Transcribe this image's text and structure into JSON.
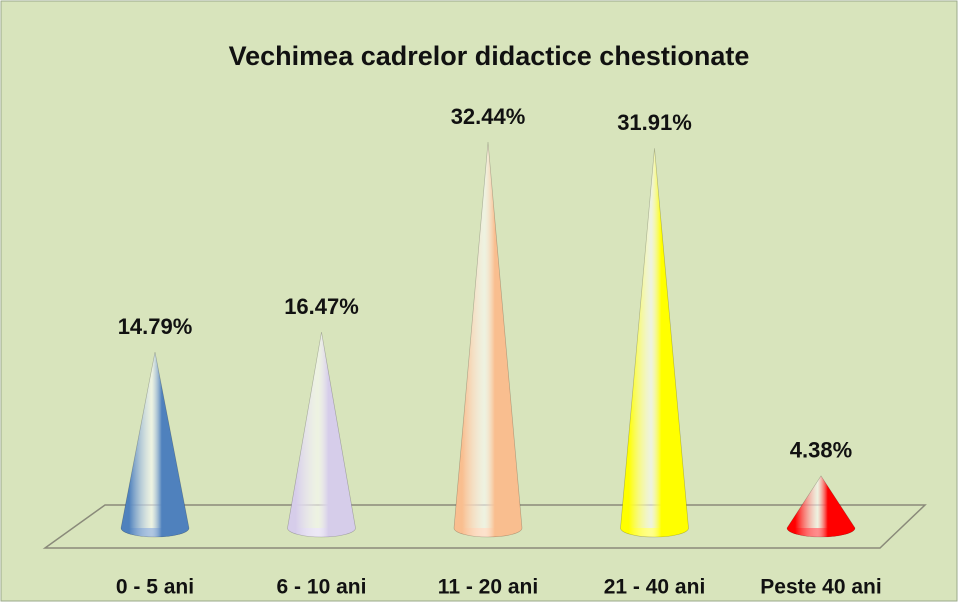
{
  "chart_data": {
    "type": "cone",
    "title": "Vechimea cadrelor didactice chestionate",
    "categories": [
      "0 - 5 ani",
      "6 - 10 ani",
      "11 - 20 ani",
      "21 - 40 ani",
      "Peste 40 ani"
    ],
    "values": [
      14.79,
      16.47,
      32.44,
      31.91,
      4.38
    ],
    "value_labels": [
      "14.79%",
      "16.47%",
      "32.44%",
      "31.91%",
      "4.38%"
    ],
    "colors": [
      "#4f81bd",
      "#d6cdea",
      "#f9be8f",
      "#ffff00",
      "#ff0000"
    ]
  }
}
